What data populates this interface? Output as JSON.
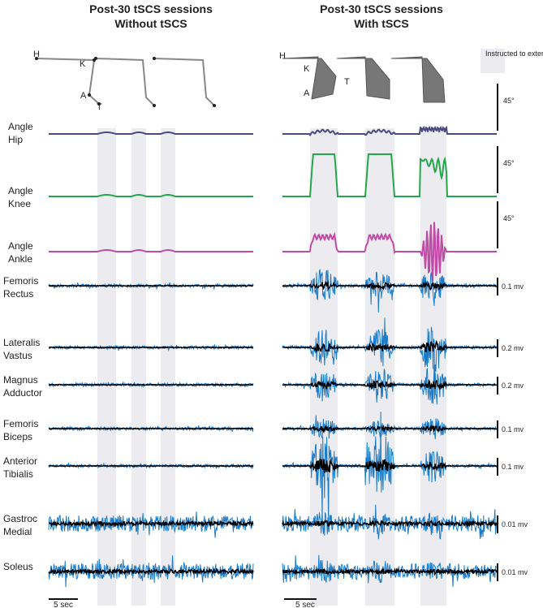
{
  "header": {
    "left": {
      "title": "Post-30 tSCS sessions",
      "subtitle": "Without tSCS"
    },
    "right": {
      "title": "Post-30 tSCS sessions",
      "subtitle": "With tSCS"
    }
  },
  "legend": "Instructed to extend knee",
  "joints_left": [
    "H",
    "K",
    "A",
    "T"
  ],
  "joints_right": [
    "H",
    "K",
    "A",
    "T"
  ],
  "rows": [
    {
      "label": [
        "Hip",
        "Angle"
      ],
      "scale": "45°"
    },
    {
      "label": [
        "Knee",
        "Angle"
      ],
      "scale": "45°"
    },
    {
      "label": [
        "Ankle",
        "Angle"
      ],
      "scale": "45°"
    },
    {
      "label": [
        "Rectus",
        "Femoris"
      ],
      "scale": "0.1 mv"
    },
    {
      "label": [
        "Vastus",
        "Lateralis"
      ],
      "scale": "0.2 mv"
    },
    {
      "label": [
        "Adductor",
        "Magnus"
      ],
      "scale": "0.2 mv"
    },
    {
      "label": [
        "Biceps",
        "Femoris"
      ],
      "scale": "0.1 mv"
    },
    {
      "label": [
        "Tibialis",
        "Anterior"
      ],
      "scale": "0.1 mv"
    },
    {
      "label": [
        "Medial",
        "Gastroc"
      ],
      "scale": "0.01 mv"
    },
    {
      "label": [
        "Soleus"
      ],
      "scale": "0.01 mv"
    }
  ],
  "time_scale_left": "5 sec",
  "time_scale_right": "5 sec"
}
